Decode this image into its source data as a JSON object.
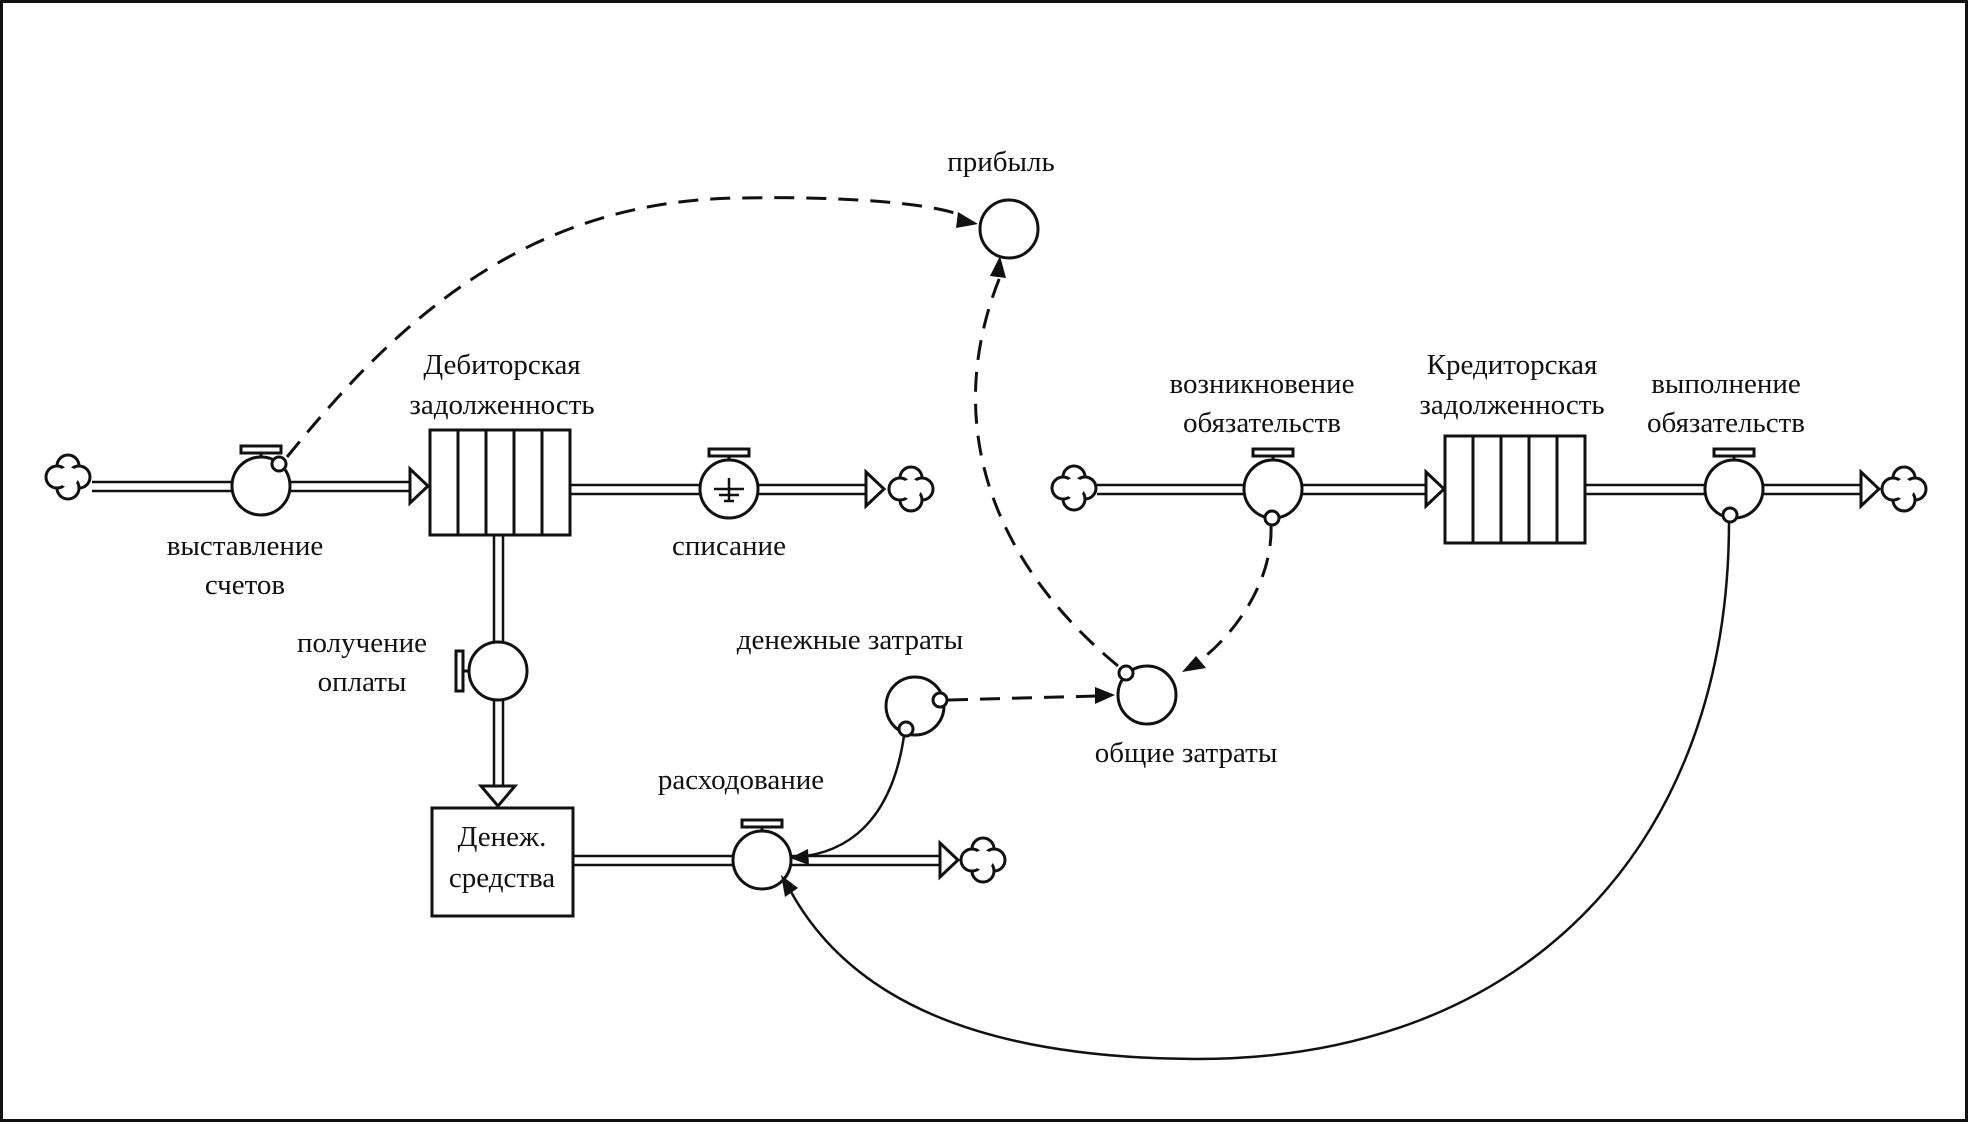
{
  "labels": {
    "profit": "прибыль",
    "receivables_1": "Дебиторская",
    "receivables_2": "задолженность",
    "invoicing_1": "выставление",
    "invoicing_2": "счетов",
    "writeoff": "списание",
    "payment_1": "получение",
    "payment_2": "оплаты",
    "cash_1": "Денеж.",
    "cash_2": "средства",
    "spending": "расходование",
    "cash_costs": "денежные затраты",
    "total_costs": "общие затраты",
    "liab_arise_1": "возникновение",
    "liab_arise_2": "обязательств",
    "payables_1": "Кредиторская",
    "payables_2": "задолженность",
    "liab_fulfil_1": "выполнение",
    "liab_fulfil_2": "обязательств"
  },
  "colors": {
    "ink": "#111111",
    "background": "#ffffff"
  }
}
